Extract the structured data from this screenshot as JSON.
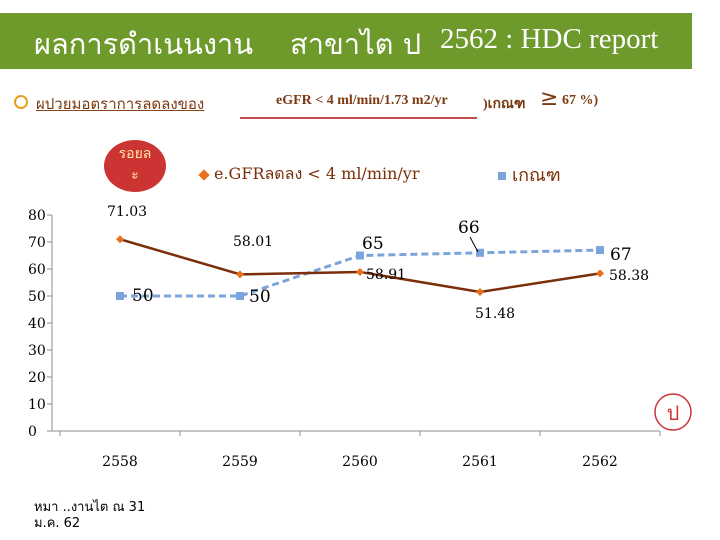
{
  "header": {
    "left": "ผลการดำเนนงาน",
    "mid": "สาขาไต ป",
    "right": "2562 : HDC report",
    "background": "#6e9a2c"
  },
  "subtitle": {
    "part_a": "ผปวยมอตราการลดลงของ",
    "part_b": "eGFR < 4 ml/min/1.73 m2/yr",
    "part_c": ")เกณฑ",
    "part_d": "≥",
    "part_e": "67 %)"
  },
  "unit_badge": {
    "line1": "รอยล",
    "line2": "ะ"
  },
  "legend": {
    "series_a": "e.GFRลดลง < 4 ml/min/yr",
    "series_b": "เกณฑ"
  },
  "corner_badge": "ป",
  "footnote": {
    "line1": "หมา   ..งานไต ณ 31",
    "line2": "ม.ค. 62"
  },
  "colors": {
    "series_a": "#7a2f0a",
    "series_a_marker": "#e9711c",
    "series_b": "#7ba4db",
    "axis": "#8c8c8c",
    "accent": "#cc3333"
  },
  "chart_data": {
    "type": "line",
    "categories": [
      "2558",
      "2559",
      "2560",
      "2561",
      "2562"
    ],
    "y_ticks": [
      0,
      10,
      20,
      30,
      40,
      50,
      60,
      70,
      80
    ],
    "ylim": [
      0,
      80
    ],
    "series": [
      {
        "name": "e.GFRลดลง < 4 ml/min/yr",
        "values": [
          71.03,
          58.01,
          58.91,
          51.48,
          58.38
        ],
        "labels": [
          "71.03",
          "58.01",
          "58.91",
          "51.48",
          "58.38"
        ]
      },
      {
        "name": "เกณฑ",
        "values": [
          50,
          50,
          65,
          66,
          67
        ],
        "labels": [
          "50",
          "50",
          "65",
          "66",
          "67"
        ]
      }
    ]
  }
}
